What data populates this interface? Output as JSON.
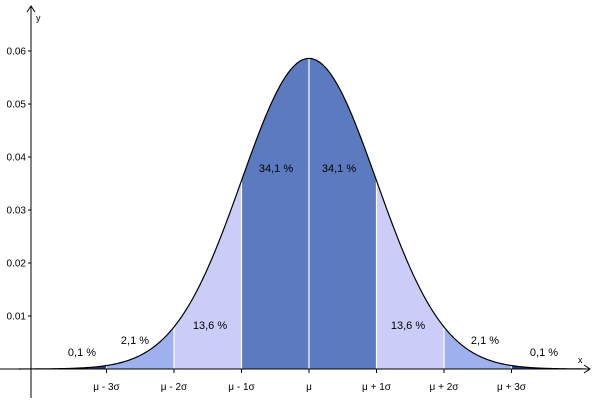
{
  "chart_data": {
    "type": "area",
    "title": "",
    "xlabel": "x",
    "ylabel": "y",
    "distribution": "normal",
    "mu": 0,
    "sigma": 1,
    "peak_y": 0.0586,
    "ylim": [
      0,
      0.065
    ],
    "xlim_sigma": [
      -4.3,
      4.1
    ],
    "y_ticks": [
      {
        "value": 0.01,
        "label": "0.01"
      },
      {
        "value": 0.02,
        "label": "0.02"
      },
      {
        "value": 0.03,
        "label": "0.03"
      },
      {
        "value": 0.04,
        "label": "0.04"
      },
      {
        "value": 0.05,
        "label": "0.05"
      },
      {
        "value": 0.06,
        "label": "0.06"
      }
    ],
    "x_ticks": [
      {
        "value": -3,
        "label": "μ - 3σ"
      },
      {
        "value": -2,
        "label": "μ - 2σ"
      },
      {
        "value": -1,
        "label": "μ - 1σ"
      },
      {
        "value": 0,
        "label": "μ"
      },
      {
        "value": 1,
        "label": "μ + 1σ"
      },
      {
        "value": 2,
        "label": "μ + 2σ"
      },
      {
        "value": 3,
        "label": "μ + 3σ"
      }
    ],
    "regions": [
      {
        "from": -4.3,
        "to": -3,
        "percent": 0.1,
        "label": "0,1 %",
        "color": "#2a3f8c"
      },
      {
        "from": -3,
        "to": -2,
        "percent": 2.1,
        "label": "2,1 %",
        "color": "#9fb0ef"
      },
      {
        "from": -2,
        "to": -1,
        "percent": 13.6,
        "label": "13,6 %",
        "color": "#ccccf8"
      },
      {
        "from": -1,
        "to": 0,
        "percent": 34.1,
        "label": "34,1 %",
        "color": "#5b7abf"
      },
      {
        "from": 0,
        "to": 1,
        "percent": 34.1,
        "label": "34,1 %",
        "color": "#5b7abf"
      },
      {
        "from": 1,
        "to": 2,
        "percent": 13.6,
        "label": "13,6 %",
        "color": "#ccccf8"
      },
      {
        "from": 2,
        "to": 3,
        "percent": 2.1,
        "label": "2,1 %",
        "color": "#9fb0ef"
      },
      {
        "from": 3,
        "to": 4.1,
        "percent": 0.1,
        "label": "0,1 %",
        "color": "#2a3f8c"
      }
    ],
    "grid": false,
    "colors": {
      "curve": "#000000",
      "divider": "#ffffff",
      "axis": "#000000"
    }
  }
}
